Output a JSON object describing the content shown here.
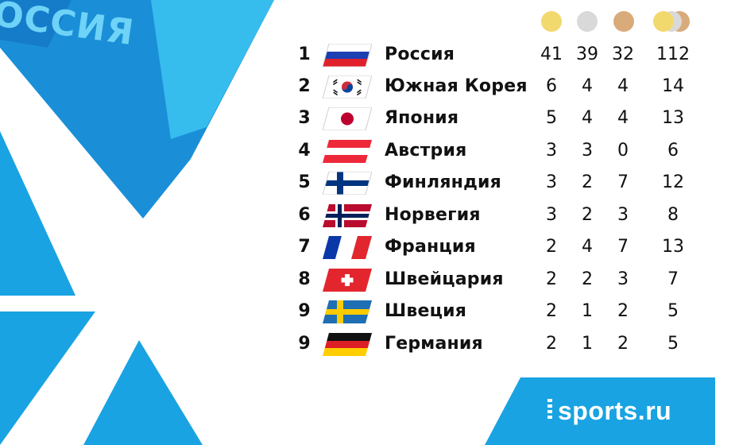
{
  "background": {
    "jersey_text": "ОССИЯ",
    "colors": {
      "blue": "#1aa3e2",
      "light_blue": "#3dc4f2",
      "white": "#ffffff"
    }
  },
  "header": {
    "icons": [
      "gold-medal-icon",
      "silver-medal-icon",
      "bronze-medal-icon",
      "total-medals-icon"
    ],
    "colors": {
      "gold": "#f2d96e",
      "silver": "#d9d9d9",
      "bronze": "#d9ab7a"
    }
  },
  "medal_table": {
    "rows": [
      {
        "rank": "1",
        "country": "Россия",
        "flag": "russia-flag-icon",
        "gold": "41",
        "silver": "39",
        "bronze": "32",
        "total": "112"
      },
      {
        "rank": "2",
        "country": "Южная Корея",
        "flag": "south-korea-flag-icon",
        "gold": "6",
        "silver": "4",
        "bronze": "4",
        "total": "14"
      },
      {
        "rank": "3",
        "country": "Япония",
        "flag": "japan-flag-icon",
        "gold": "5",
        "silver": "4",
        "bronze": "4",
        "total": "13"
      },
      {
        "rank": "4",
        "country": "Австрия",
        "flag": "austria-flag-icon",
        "gold": "3",
        "silver": "3",
        "bronze": "0",
        "total": "6"
      },
      {
        "rank": "5",
        "country": "Финляндия",
        "flag": "finland-flag-icon",
        "gold": "3",
        "silver": "2",
        "bronze": "7",
        "total": "12"
      },
      {
        "rank": "6",
        "country": "Норвегия",
        "flag": "norway-flag-icon",
        "gold": "3",
        "silver": "2",
        "bronze": "3",
        "total": "8"
      },
      {
        "rank": "7",
        "country": "Франция",
        "flag": "france-flag-icon",
        "gold": "2",
        "silver": "4",
        "bronze": "7",
        "total": "13"
      },
      {
        "rank": "8",
        "country": "Швейцария",
        "flag": "switzerland-flag-icon",
        "gold": "2",
        "silver": "2",
        "bronze": "3",
        "total": "7"
      },
      {
        "rank": "9",
        "country": "Швеция",
        "flag": "sweden-flag-icon",
        "gold": "2",
        "silver": "1",
        "bronze": "2",
        "total": "5"
      },
      {
        "rank": "9",
        "country": "Германия",
        "flag": "germany-flag-icon",
        "gold": "2",
        "silver": "1",
        "bronze": "2",
        "total": "5"
      }
    ]
  },
  "logo": {
    "text": "sports.ru"
  }
}
